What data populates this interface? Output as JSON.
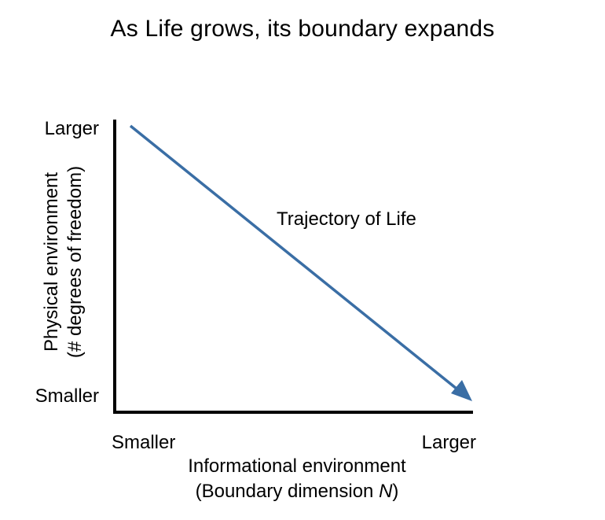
{
  "title": "As Life grows, its boundary expands",
  "y_axis": {
    "label_line1": "Physical environment",
    "label_line2": "(# degrees of freedom)",
    "top_tick": "Larger",
    "bottom_tick": "Smaller"
  },
  "x_axis": {
    "label_line1": "Informational environment",
    "label_line2_prefix": "(Boundary dimension ",
    "label_line2_var": "N",
    "label_line2_suffix": ")",
    "left_tick": "Smaller",
    "right_tick": "Larger"
  },
  "trajectory": {
    "label": "Trajectory of Life",
    "color": "#3a6ea5"
  },
  "colors": {
    "axis": "#000000",
    "text": "#000000",
    "background": "#ffffff"
  }
}
